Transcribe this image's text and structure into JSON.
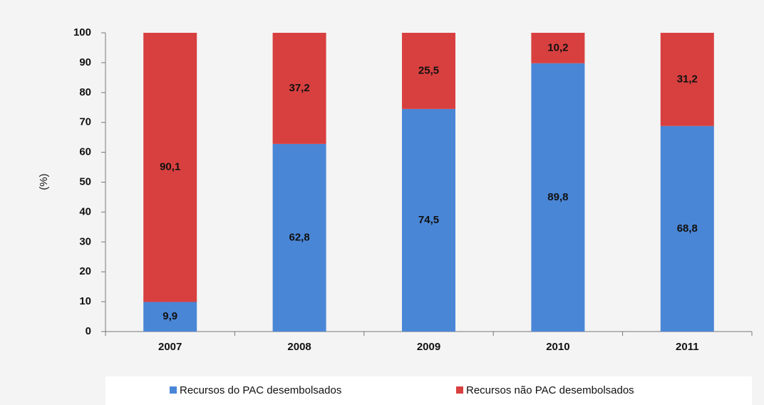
{
  "chart_data": {
    "type": "stacked_bar",
    "y_label": "(%)",
    "categories": [
      "2007",
      "2008",
      "2009",
      "2010",
      "2011"
    ],
    "series": [
      {
        "name": "Recursos do PAC desembolsados",
        "color": "#4a86d6",
        "values": [
          9.9,
          62.8,
          74.5,
          89.8,
          68.8
        ],
        "value_labels": [
          "9,9",
          "62,8",
          "74,5",
          "89,8",
          "68,8"
        ]
      },
      {
        "name": "Recursos não PAC desembolsados",
        "color": "#d8403f",
        "values": [
          90.1,
          37.2,
          25.5,
          10.2,
          31.2
        ],
        "value_labels": [
          "90,1",
          "37,2",
          "25,5",
          "10,2",
          "31,2"
        ]
      }
    ],
    "ylim": [
      0,
      100
    ],
    "yticks": [
      0,
      10,
      20,
      30,
      40,
      50,
      60,
      70,
      80,
      90,
      100
    ],
    "grid": false,
    "legend": "bottom"
  }
}
